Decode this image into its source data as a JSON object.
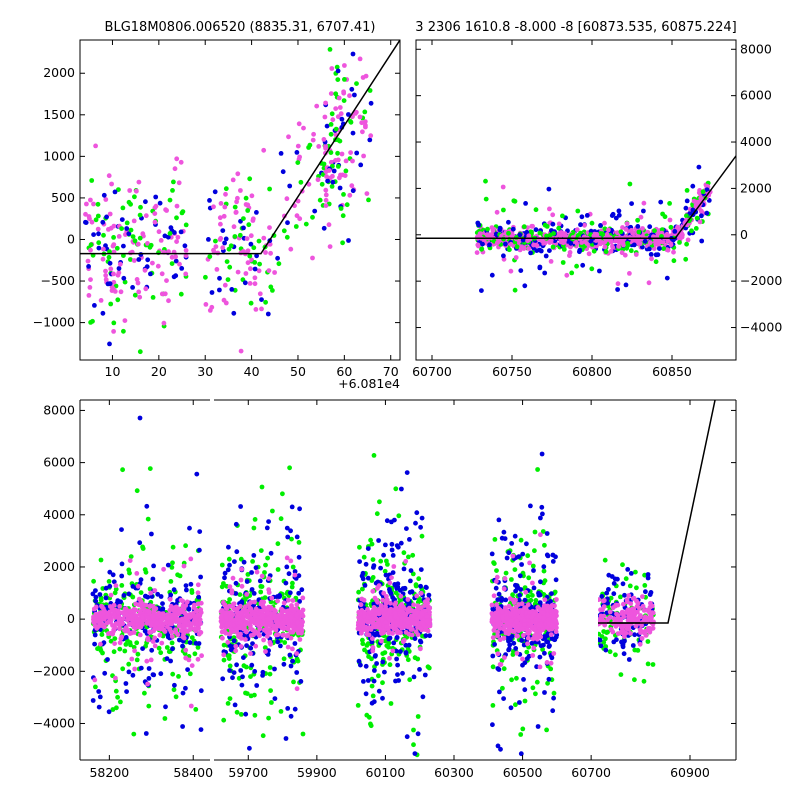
{
  "colors": {
    "green": "#00ee00",
    "blue": "#0000dd",
    "pink": "#ee55dd",
    "model": "#000000"
  },
  "chart_data": [
    {
      "type": "scatter",
      "title": "BLG18M0806.006520 (8835.31, 6707.41)",
      "offset_label": "+6.081e4",
      "xlim": [
        3,
        72
      ],
      "ylim": [
        -1450,
        2400
      ],
      "xticks": [
        10,
        20,
        30,
        40,
        50,
        60,
        70
      ],
      "yticks": [
        -1000,
        -500,
        0,
        500,
        1000,
        1500,
        2000
      ],
      "model": {
        "x": [
          3,
          42,
          72
        ],
        "y": [
          -170,
          -170,
          2400
        ]
      }
    },
    {
      "type": "scatter",
      "title": "3 2306 1610.8 -8.000 -8 [60873.535, 60875.224]",
      "xlim": [
        60690,
        60890
      ],
      "ylim": [
        -5400,
        8400
      ],
      "xticks": [
        60700,
        60750,
        60800,
        60850
      ],
      "yticks": [
        -4000,
        -2000,
        0,
        2000,
        4000,
        6000,
        8000
      ],
      "yaxis_side": "right",
      "model": {
        "x": [
          60690,
          60852,
          60890
        ],
        "y": [
          -150,
          -150,
          3400
        ]
      }
    },
    {
      "type": "scatter",
      "title": "",
      "ylim": [
        -5400,
        8400
      ],
      "yticks": [
        -4000,
        -2000,
        0,
        2000,
        4000,
        6000,
        8000
      ],
      "segments": [
        {
          "xlim": [
            58130,
            58440
          ],
          "xticks": [
            58200,
            58400
          ]
        },
        {
          "xlim": [
            59600,
            60720
          ],
          "xticks": [
            59700,
            59900,
            60100,
            60300,
            60500,
            60700
          ]
        },
        {
          "xlim": [
            60720,
            60990
          ],
          "xticks": [
            60900
          ]
        }
      ],
      "model": {
        "x": [
          60660,
          60857,
          60950
        ],
        "y": [
          -150,
          -150,
          8500
        ]
      },
      "seasons": [
        [
          58160,
          58420
        ],
        [
          59620,
          59860
        ],
        [
          60020,
          60230
        ],
        [
          60410,
          60600
        ],
        [
          60720,
          60830
        ]
      ]
    }
  ]
}
